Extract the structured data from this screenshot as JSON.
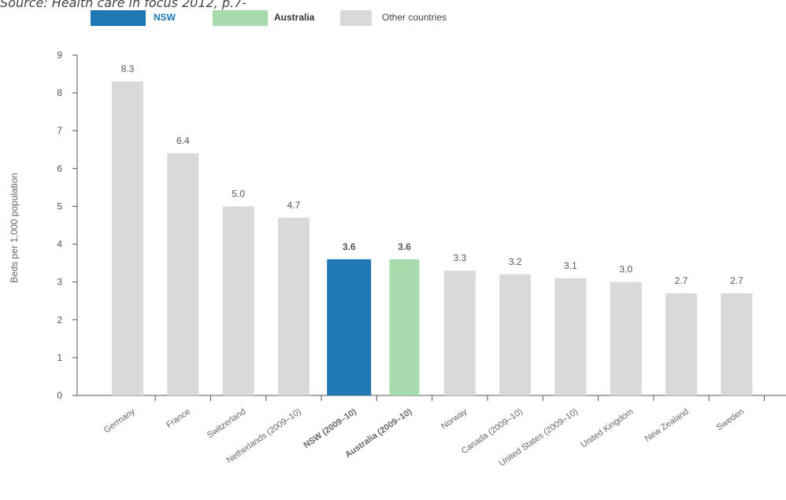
{
  "caption": "Source: Health care in focus 2012, p.7-",
  "legend": [
    {
      "label": "NSW",
      "color": "#1f77b4"
    },
    {
      "label": "Australia",
      "color": "#a6dcae"
    },
    {
      "label": "Other countries",
      "color": "#d9d9d9"
    }
  ],
  "chart_data": {
    "type": "bar",
    "title": "",
    "xlabel": "",
    "ylabel": "Beds per 1,000 population",
    "ylim": [
      0,
      9
    ],
    "yticks": [
      0,
      1,
      2,
      3,
      4,
      5,
      6,
      7,
      8,
      9
    ],
    "grid": false,
    "legend_position": "top",
    "categories": [
      "Germany",
      "France",
      "Switzerland",
      "Netherlands (2009–10)",
      "NSW (2009–10)",
      "Australia (2009–10)",
      "Norway",
      "Canada (2009–10)",
      "United States (2009–10)",
      "United Kingdom",
      "New Zealand",
      "Sweden"
    ],
    "values": [
      8.3,
      6.4,
      5.0,
      4.7,
      3.6,
      3.6,
      3.3,
      3.2,
      3.1,
      3.0,
      2.7,
      2.7
    ],
    "value_labels": [
      "8.3",
      "6.4",
      "5.0",
      "4.7",
      "3.6",
      "3.6",
      "3.3",
      "3.2",
      "3.1",
      "3.0",
      "2.7",
      "2.7"
    ],
    "groups": [
      "other",
      "other",
      "other",
      "other",
      "nsw",
      "australia",
      "other",
      "other",
      "other",
      "other",
      "other",
      "other"
    ],
    "colors": {
      "nsw": "#1f77b4",
      "australia": "#a6dcae",
      "other": "#d9d9d9",
      "nsw_text": "#1f77b4",
      "australia_text": "#333333",
      "other_text": "#666666"
    }
  }
}
